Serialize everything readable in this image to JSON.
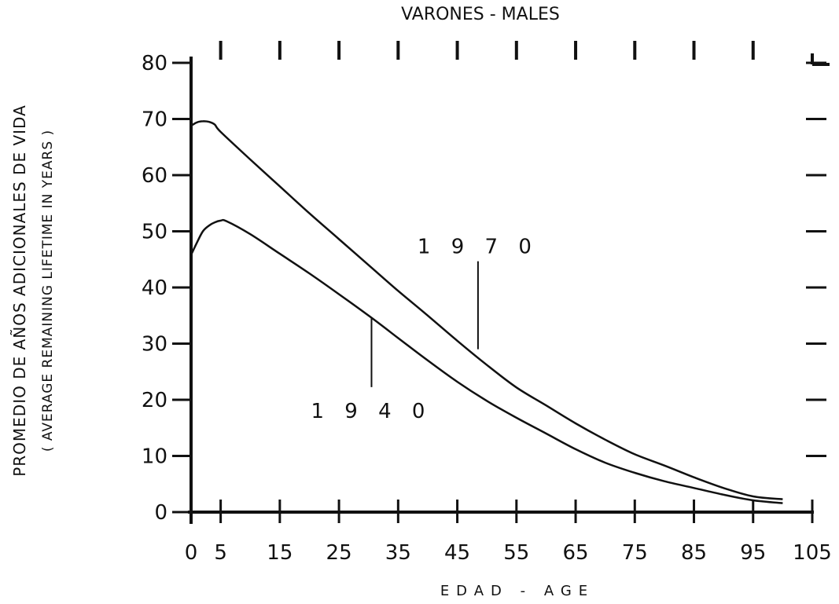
{
  "chart_data": {
    "type": "line",
    "title": "VARONES  -  MALES",
    "ylabel": "PROMEDIO DE AÑOS ADICIONALES DE VIDA",
    "ylabel_sub": "( AVERAGE REMAINING LIFETIME IN YEARS )",
    "xlabel": "EDAD - AGE",
    "xlim": [
      0,
      105
    ],
    "ylim": [
      0,
      80
    ],
    "x_ticks": [
      0,
      5,
      15,
      25,
      35,
      45,
      55,
      65,
      75,
      85,
      95,
      105
    ],
    "y_ticks": [
      0,
      10,
      20,
      30,
      40,
      50,
      60,
      70,
      80
    ],
    "grid": false,
    "series": [
      {
        "name": "1970",
        "x": [
          0,
          1,
          2,
          3,
          4,
          5,
          10,
          15,
          20,
          25,
          30,
          35,
          40,
          45,
          50,
          55,
          60,
          65,
          70,
          75,
          80,
          85,
          90,
          95,
          100
        ],
        "y": [
          68.8,
          69.4,
          69.6,
          69.5,
          69.0,
          67.7,
          62.8,
          58.0,
          53.2,
          48.6,
          44.0,
          39.4,
          35.0,
          30.5,
          26.2,
          22.2,
          19.0,
          15.8,
          12.9,
          10.3,
          8.3,
          6.2,
          4.3,
          2.8,
          2.3
        ]
      },
      {
        "name": "1940",
        "x": [
          0,
          1,
          2,
          3,
          4,
          5,
          6,
          10,
          15,
          20,
          25,
          30,
          35,
          40,
          45,
          50,
          55,
          60,
          65,
          70,
          75,
          80,
          85,
          90,
          95,
          100
        ],
        "y": [
          45.8,
          48.0,
          50.0,
          51.0,
          51.6,
          51.9,
          51.8,
          49.5,
          46.0,
          42.5,
          38.8,
          35.0,
          31.0,
          27.0,
          23.2,
          19.8,
          16.8,
          14.0,
          11.2,
          8.8,
          7.0,
          5.5,
          4.3,
          3.1,
          2.1,
          1.6
        ]
      }
    ],
    "annotations": [
      {
        "text": "1 9 7 0",
        "series": "1970",
        "x": 48.5,
        "y": 29
      },
      {
        "text": "1 9 4 0",
        "series": "1940",
        "x": 30.5,
        "y": 34
      }
    ]
  }
}
